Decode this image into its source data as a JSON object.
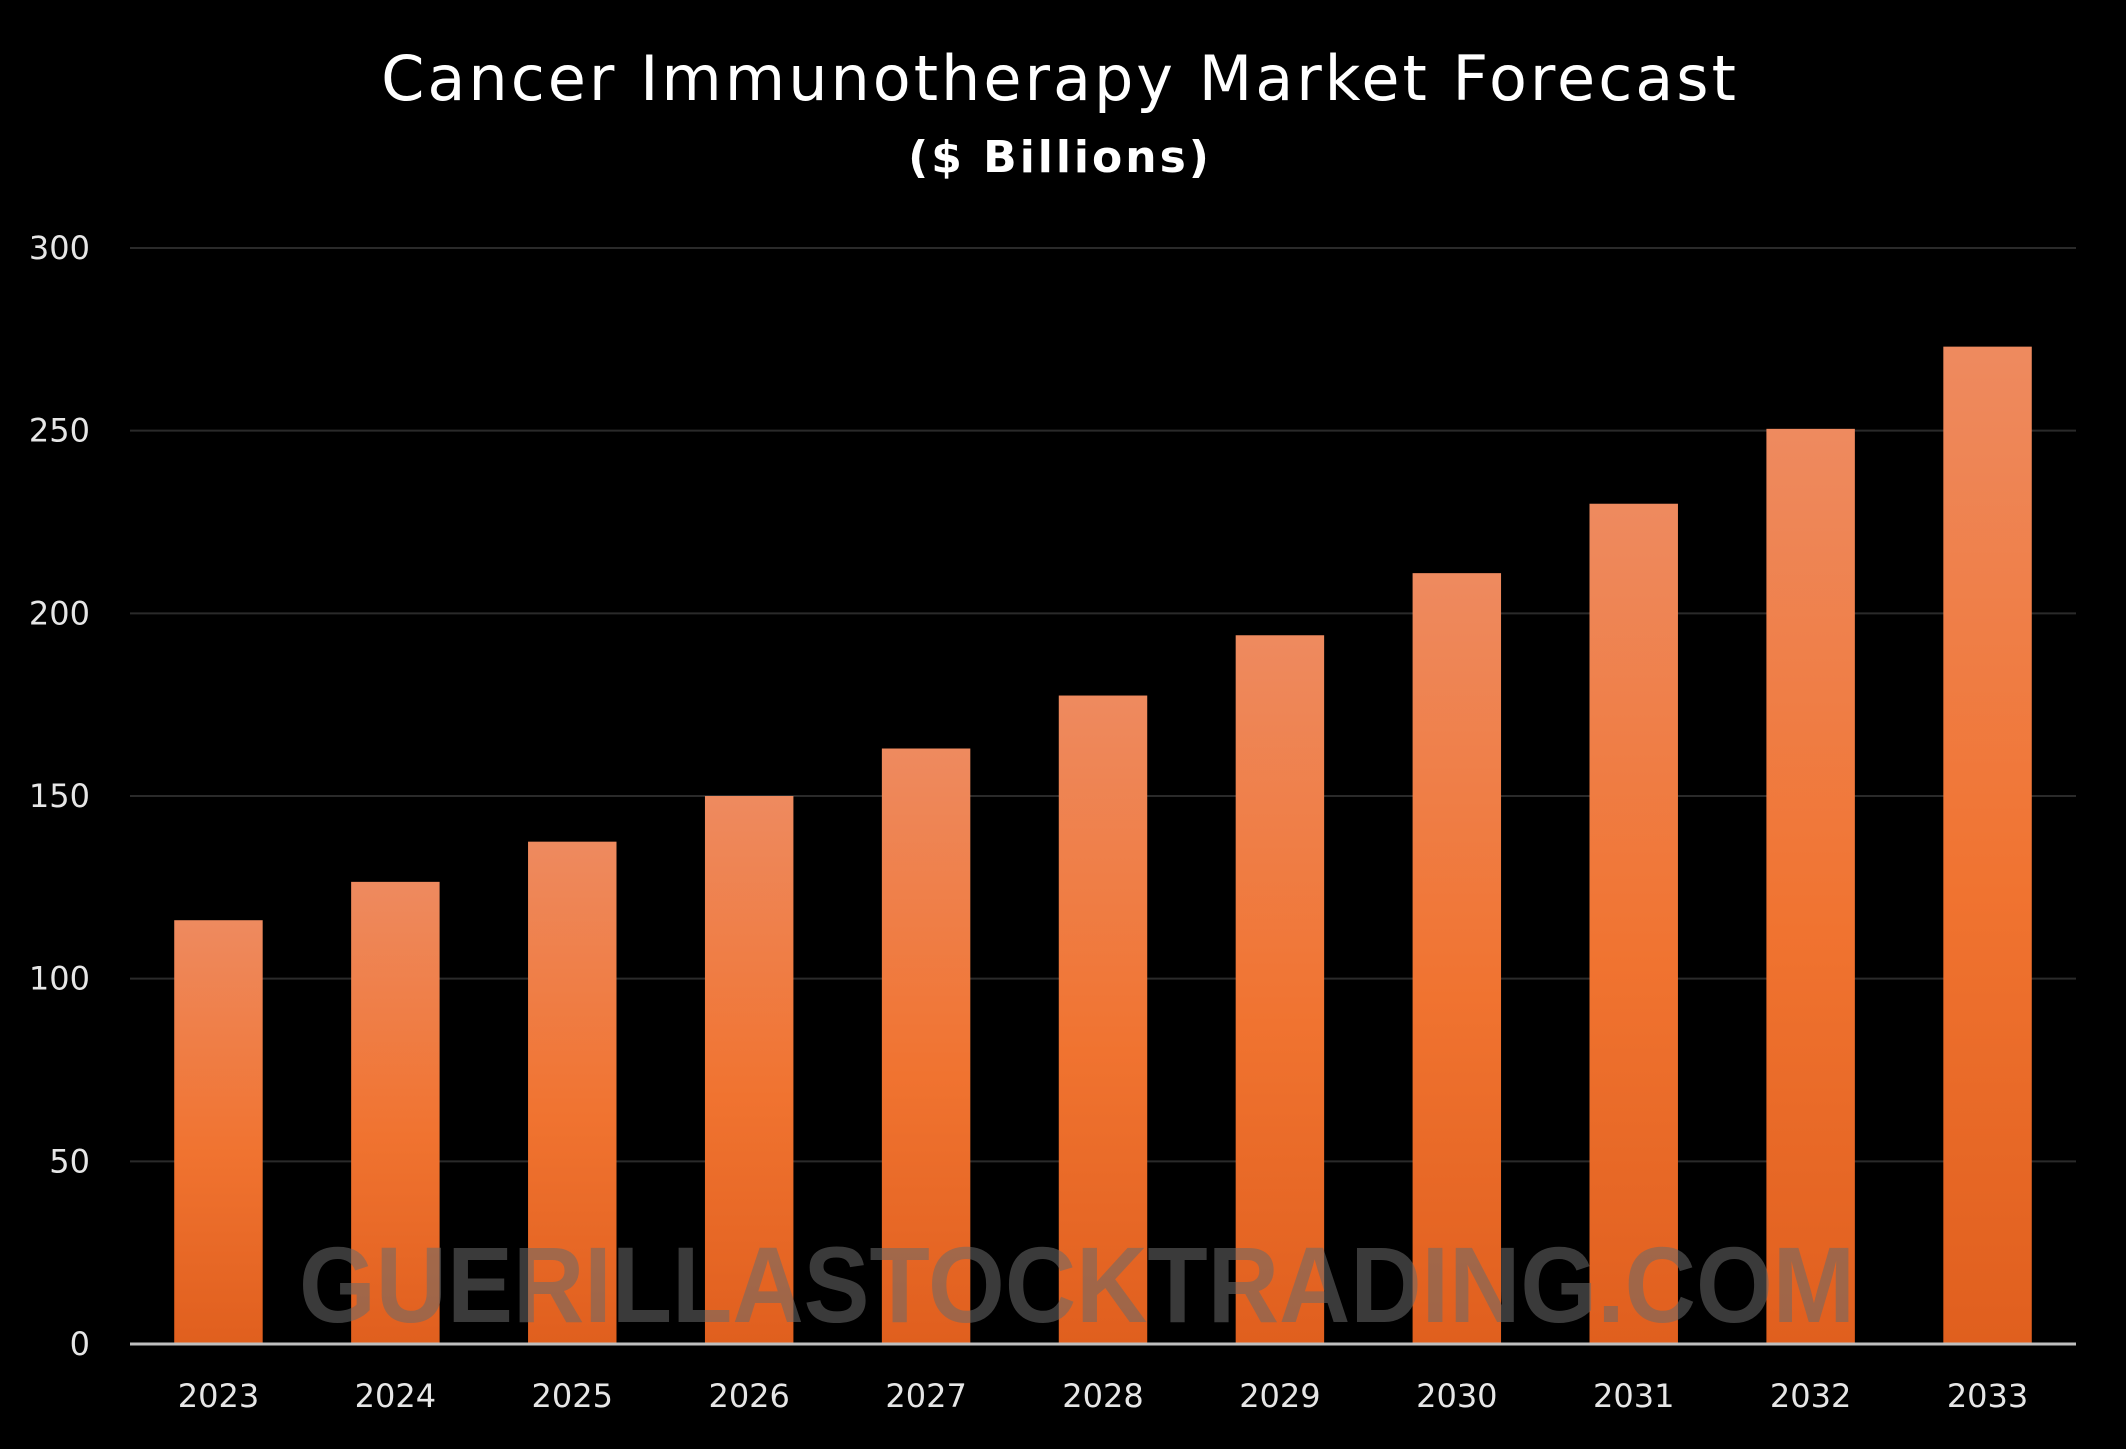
{
  "chart_data": {
    "type": "bar",
    "title": "Cancer Immunotherapy Market Forecast",
    "subtitle": "($ Billions)",
    "categories": [
      "2023",
      "2024",
      "2025",
      "2026",
      "2027",
      "2028",
      "2029",
      "2030",
      "2031",
      "2032",
      "2033"
    ],
    "series": [
      {
        "values": [
          116,
          126.5,
          137.5,
          150,
          163,
          177.5,
          194,
          211,
          230,
          250.5,
          273
        ]
      }
    ],
    "ylim": [
      0,
      300
    ],
    "yticks": [
      "0",
      "50",
      "100",
      "150",
      "200",
      "250",
      "300"
    ],
    "grid": true,
    "legend": "none",
    "bar_color_top": "#ee8a5f",
    "bar_color_mid": "#f07330",
    "bar_color_bottom": "#e05f1e",
    "background_color": "#000000",
    "gridline_color": "#2a2a2a",
    "axis_color": "#bfbfbf"
  },
  "watermark": "GUERILLASTOCKTRADING.COM"
}
